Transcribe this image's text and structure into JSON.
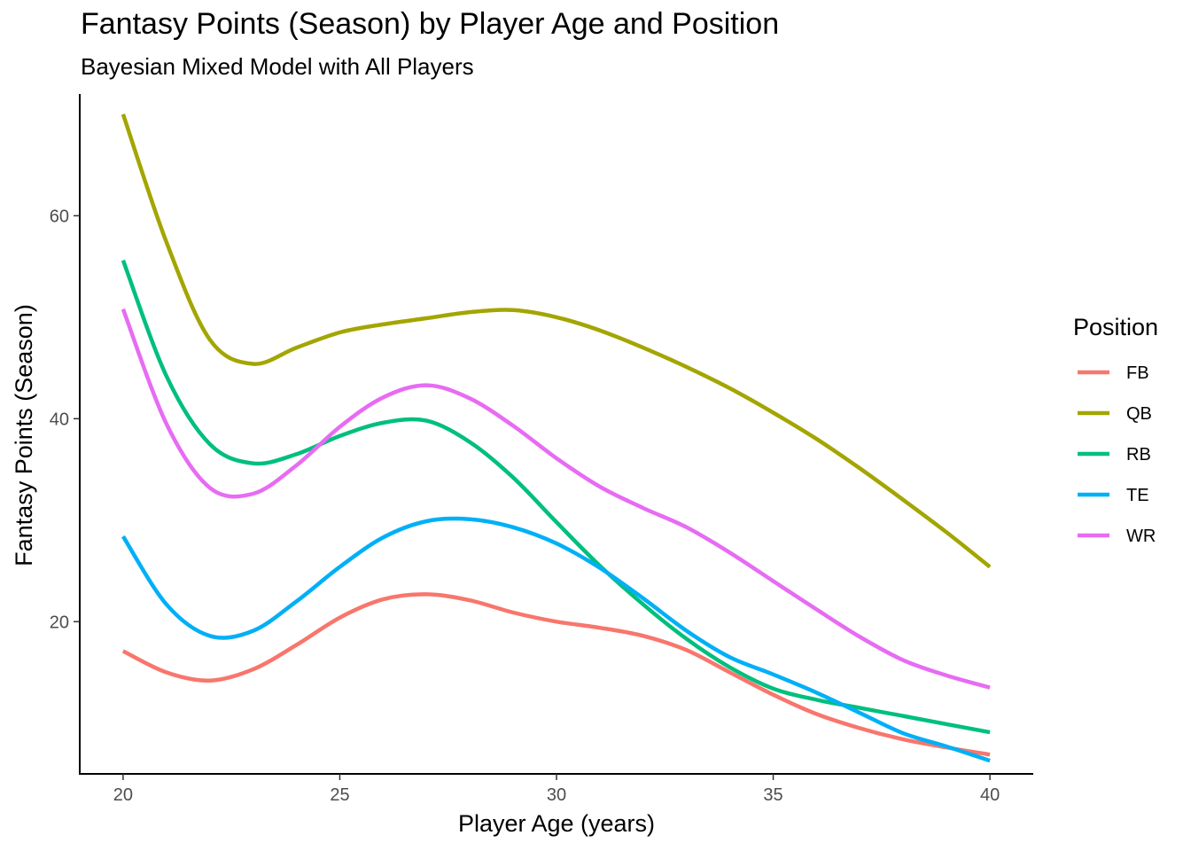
{
  "chart_data": {
    "type": "line",
    "title": "Fantasy Points (Season) by Player Age and Position",
    "subtitle": "Bayesian Mixed Model with All Players",
    "xlabel": "Player Age (years)",
    "ylabel": "Fantasy Points (Season)",
    "xlim": [
      19,
      41
    ],
    "ylim": [
      5,
      72
    ],
    "xticks": [
      20,
      25,
      30,
      35,
      40
    ],
    "yticks": [
      20,
      40,
      60
    ],
    "grid": false,
    "legend": {
      "title": "Position",
      "placement": "right"
    },
    "series": [
      {
        "name": "FB",
        "color": "#F8766D",
        "x": [
          20,
          21,
          22,
          23,
          24,
          25,
          26,
          27,
          28,
          29,
          30,
          31,
          32,
          33,
          34,
          35,
          36,
          37,
          38,
          39,
          40
        ],
        "y": [
          17.1,
          15.0,
          14.2,
          15.3,
          17.7,
          20.4,
          22.2,
          22.7,
          22.1,
          20.9,
          20.0,
          19.4,
          18.6,
          17.2,
          15.0,
          12.8,
          10.9,
          9.5,
          8.4,
          7.6,
          6.9
        ]
      },
      {
        "name": "QB",
        "color": "#A3A500",
        "x": [
          20,
          21,
          22,
          23,
          24,
          25,
          26,
          27,
          28,
          29,
          30,
          31,
          32,
          33,
          34,
          35,
          36,
          37,
          38,
          39,
          40
        ],
        "y": [
          70.0,
          57.4,
          47.8,
          45.4,
          47.0,
          48.5,
          49.3,
          49.9,
          50.5,
          50.7,
          50.0,
          48.7,
          47.0,
          45.1,
          43.0,
          40.6,
          38.0,
          35.1,
          32.0,
          28.8,
          25.4
        ]
      },
      {
        "name": "RB",
        "color": "#00BF7D",
        "x": [
          20,
          21,
          22,
          23,
          24,
          25,
          26,
          27,
          28,
          29,
          30,
          31,
          32,
          33,
          34,
          35,
          36,
          37,
          38,
          39,
          40
        ],
        "y": [
          55.6,
          44.2,
          37.5,
          35.6,
          36.5,
          38.3,
          39.6,
          39.8,
          37.7,
          34.2,
          29.8,
          25.5,
          21.7,
          18.3,
          15.5,
          13.4,
          12.3,
          11.5,
          10.7,
          9.9,
          9.1
        ]
      },
      {
        "name": "TE",
        "color": "#00B0F6",
        "x": [
          20,
          21,
          22,
          23,
          24,
          25,
          26,
          27,
          28,
          29,
          30,
          31,
          32,
          33,
          34,
          35,
          36,
          37,
          38,
          39,
          40
        ],
        "y": [
          28.4,
          21.7,
          18.6,
          19.1,
          22.0,
          25.4,
          28.3,
          29.9,
          30.1,
          29.3,
          27.7,
          25.3,
          22.3,
          19.1,
          16.5,
          14.8,
          13.0,
          11.0,
          9.0,
          7.7,
          6.3
        ]
      },
      {
        "name": "WR",
        "color": "#E76BF3",
        "x": [
          20,
          21,
          22,
          23,
          24,
          25,
          26,
          27,
          28,
          29,
          30,
          31,
          32,
          33,
          34,
          35,
          36,
          37,
          38,
          39,
          40
        ],
        "y": [
          50.8,
          39.5,
          33.2,
          32.6,
          35.4,
          39.2,
          42.1,
          43.3,
          42.0,
          39.3,
          36.1,
          33.3,
          31.2,
          29.3,
          26.8,
          24.0,
          21.2,
          18.5,
          16.2,
          14.7,
          13.5
        ]
      }
    ]
  }
}
